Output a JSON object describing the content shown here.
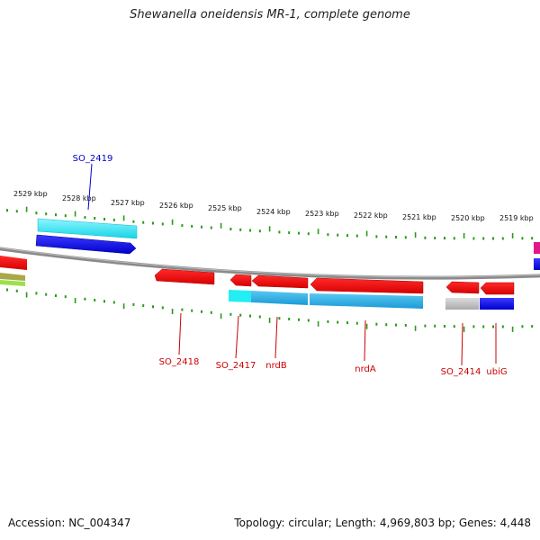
{
  "header": {
    "title": "Shewanella oneidensis MR-1, complete genome"
  },
  "footer": {
    "accession": "Accession: NC_004347",
    "summary": "Topology: circular; Length: 4,969,803 bp; Genes: 4,448"
  },
  "scale": {
    "ticks": [
      "2529 kbp",
      "2528 kbp",
      "2527 kbp",
      "2526 kbp",
      "2525 kbp",
      "2524 kbp",
      "2523 kbp",
      "2522 kbp",
      "2521 kbp",
      "2520 kbp",
      "2519 kbp"
    ]
  },
  "gene_labels": {
    "top": [
      {
        "text": "SO_2419",
        "color": "#0000cc"
      }
    ],
    "bottom": [
      {
        "text": "SO_2418",
        "color": "#cc0000"
      },
      {
        "text": "SO_2417",
        "color": "#cc0000"
      },
      {
        "text": "nrdB",
        "color": "#cc0000"
      },
      {
        "text": "nrdA",
        "color": "#cc0000"
      },
      {
        "text": "SO_2414",
        "color": "#cc0000"
      },
      {
        "text": "ubiG",
        "color": "#cc0000"
      }
    ]
  },
  "colors": {
    "forward_gene": "#ee0000",
    "reverse_gene": "#ee0000",
    "cog_cyan": "#22e0ee",
    "cog_blue": "#1010e0",
    "cog_grey": "#bbbbbb",
    "tick": "#2a9a1a",
    "backbone": "#888888"
  }
}
